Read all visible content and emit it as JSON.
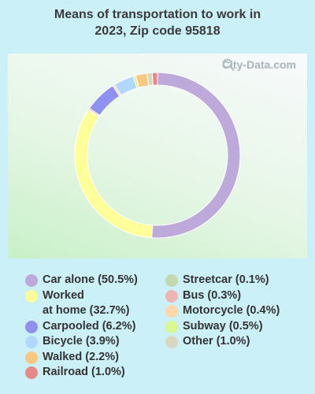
{
  "title_line1": "Means of transportation to work in",
  "title_line2": "2023, Zip code 95818",
  "watermark": "City-Data.com",
  "chart_data": {
    "type": "pie",
    "title": "Means of transportation to work in 2023, Zip code 95818",
    "donut": true,
    "slices": [
      {
        "name": "Car alone",
        "label": "Car alone (50.5%)",
        "value": 50.5,
        "color": "#bda9da"
      },
      {
        "name": "Worked at home",
        "label": "Worked\nat home (32.7%)",
        "value": 32.7,
        "color": "#ffff99"
      },
      {
        "name": "Streetcar",
        "label": "Streetcar (0.1%)",
        "value": 0.1,
        "color": "#c3d9ad"
      },
      {
        "name": "Bus",
        "label": "Bus (0.3%)",
        "value": 0.3,
        "color": "#f0b4b4"
      },
      {
        "name": "Carpooled",
        "label": "Carpooled (6.2%)",
        "value": 6.2,
        "color": "#9090f0"
      },
      {
        "name": "Motorcycle",
        "label": "Motorcycle (0.4%)",
        "value": 0.4,
        "color": "#fcd7a8"
      },
      {
        "name": "Bicycle",
        "label": "Bicycle (3.9%)",
        "value": 3.9,
        "color": "#b0d8fc"
      },
      {
        "name": "Subway",
        "label": "Subway (0.5%)",
        "value": 0.5,
        "color": "#d8f890"
      },
      {
        "name": "Walked",
        "label": "Walked (2.2%)",
        "value": 2.2,
        "color": "#f8c880"
      },
      {
        "name": "Other",
        "label": "Other (1.0%)",
        "value": 1.0,
        "color": "#d8d8c0"
      },
      {
        "name": "Railroad",
        "label": "Railroad (1.0%)",
        "value": 1.0,
        "color": "#e88888"
      }
    ],
    "legend_left": [
      {
        "label": "Car alone (50.5%)",
        "color": "#bda9da"
      },
      {
        "label": "Worked\nat home (32.7%)",
        "color": "#ffff99"
      },
      {
        "label": "Carpooled (6.2%)",
        "color": "#9090f0"
      },
      {
        "label": "Bicycle (3.9%)",
        "color": "#b0d8fc"
      },
      {
        "label": "Walked (2.2%)",
        "color": "#f8c880"
      },
      {
        "label": "Railroad (1.0%)",
        "color": "#e88888"
      }
    ],
    "legend_right": [
      {
        "label": "Streetcar (0.1%)",
        "color": "#c3d9ad"
      },
      {
        "label": "Bus (0.3%)",
        "color": "#f0b4b4"
      },
      {
        "label": "Motorcycle (0.4%)",
        "color": "#fcd7a8"
      },
      {
        "label": "Subway (0.5%)",
        "color": "#d8f890"
      },
      {
        "label": "Other (1.0%)",
        "color": "#d8d8c0"
      }
    ]
  }
}
